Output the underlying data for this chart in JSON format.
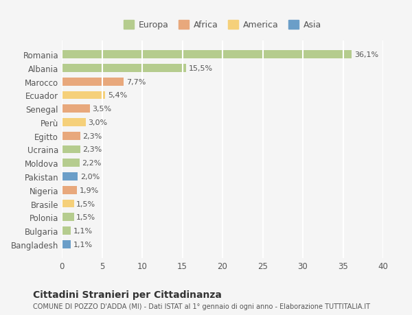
{
  "countries": [
    "Romania",
    "Albania",
    "Marocco",
    "Ecuador",
    "Senegal",
    "Perù",
    "Egitto",
    "Ucraina",
    "Moldova",
    "Pakistan",
    "Nigeria",
    "Brasile",
    "Polonia",
    "Bulgaria",
    "Bangladesh"
  ],
  "values": [
    36.1,
    15.5,
    7.7,
    5.4,
    3.5,
    3.0,
    2.3,
    2.3,
    2.2,
    2.0,
    1.9,
    1.5,
    1.5,
    1.1,
    1.1
  ],
  "labels": [
    "36,1%",
    "15,5%",
    "7,7%",
    "5,4%",
    "3,5%",
    "3,0%",
    "2,3%",
    "2,3%",
    "2,2%",
    "2,0%",
    "1,9%",
    "1,5%",
    "1,5%",
    "1,1%",
    "1,1%"
  ],
  "continents": [
    "Europa",
    "Europa",
    "Africa",
    "America",
    "Africa",
    "America",
    "Africa",
    "Europa",
    "Europa",
    "Asia",
    "Africa",
    "America",
    "Europa",
    "Europa",
    "Asia"
  ],
  "colors": {
    "Europa": "#b5cc8e",
    "Africa": "#e8a87c",
    "America": "#f5d07a",
    "Asia": "#6b9ec8"
  },
  "legend_order": [
    "Europa",
    "Africa",
    "America",
    "Asia"
  ],
  "legend_colors": [
    "#b5cc8e",
    "#e8a87c",
    "#f5d07a",
    "#6b9ec8"
  ],
  "title": "Cittadini Stranieri per Cittadinanza",
  "subtitle": "COMUNE DI POZZO D'ADDA (MI) - Dati ISTAT al 1° gennaio di ogni anno - Elaborazione TUTTITALIA.IT",
  "xlim": [
    0,
    40
  ],
  "xticks": [
    0,
    5,
    10,
    15,
    20,
    25,
    30,
    35,
    40
  ],
  "background_color": "#f5f5f5",
  "grid_color": "#ffffff",
  "bar_height": 0.6
}
